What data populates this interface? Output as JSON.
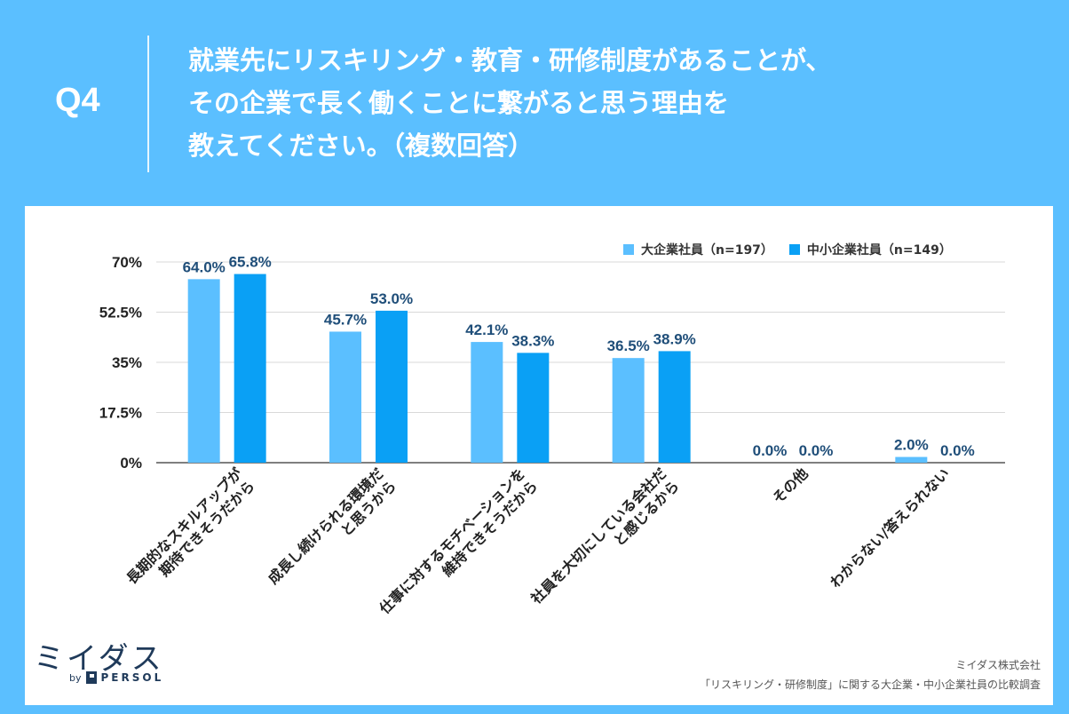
{
  "header": {
    "question_label": "Q4",
    "question_lines": [
      "就業先にリスキリング・教育・研修制度があることが、",
      "その企業で長く働くことに繋がると思う理由を",
      "教えてください。（複数回答）"
    ]
  },
  "footer": {
    "logo_text": "ミイダス",
    "logo_by": "by",
    "logo_brand": "PERSOL",
    "source_company": "ミイダス株式会社",
    "source_survey": "「リスキリング・研修制度」に関する大企業・中小企業社員の比較調査"
  },
  "chart_data": {
    "type": "bar",
    "categories": [
      [
        "長期的なスキルアップが",
        "期待できそうだから"
      ],
      [
        "成長し続けられる環境だ",
        "と思うから"
      ],
      [
        "仕事に対するモチベーションを",
        "維持できそうだから"
      ],
      [
        "社員を大切にしている会社だ",
        "と感じるから"
      ],
      [
        "その他"
      ],
      [
        "わからない/答えられない"
      ]
    ],
    "series": [
      {
        "name": "大企業社員（n=197）",
        "color": "#5bbfff",
        "values": [
          64.0,
          45.7,
          42.1,
          36.5,
          0.0,
          2.0
        ],
        "labels": [
          "64.0%",
          "45.7%",
          "42.1%",
          "36.5%",
          "0.0%",
          "2.0%"
        ]
      },
      {
        "name": "中小企業社員（n=149）",
        "color": "#0aa0f5",
        "values": [
          65.8,
          53.0,
          38.3,
          38.9,
          0.0,
          0.0
        ],
        "labels": [
          "65.8%",
          "53.0%",
          "38.3%",
          "38.9%",
          "0.0%",
          "0.0%"
        ]
      }
    ],
    "yticks": [
      0,
      17.5,
      35,
      52.5,
      70
    ],
    "ytick_labels": [
      "0%",
      "17.5%",
      "35%",
      "52.5%",
      "70%"
    ],
    "ylim": [
      0,
      70
    ],
    "grid": true,
    "legend_position": "top-right"
  }
}
